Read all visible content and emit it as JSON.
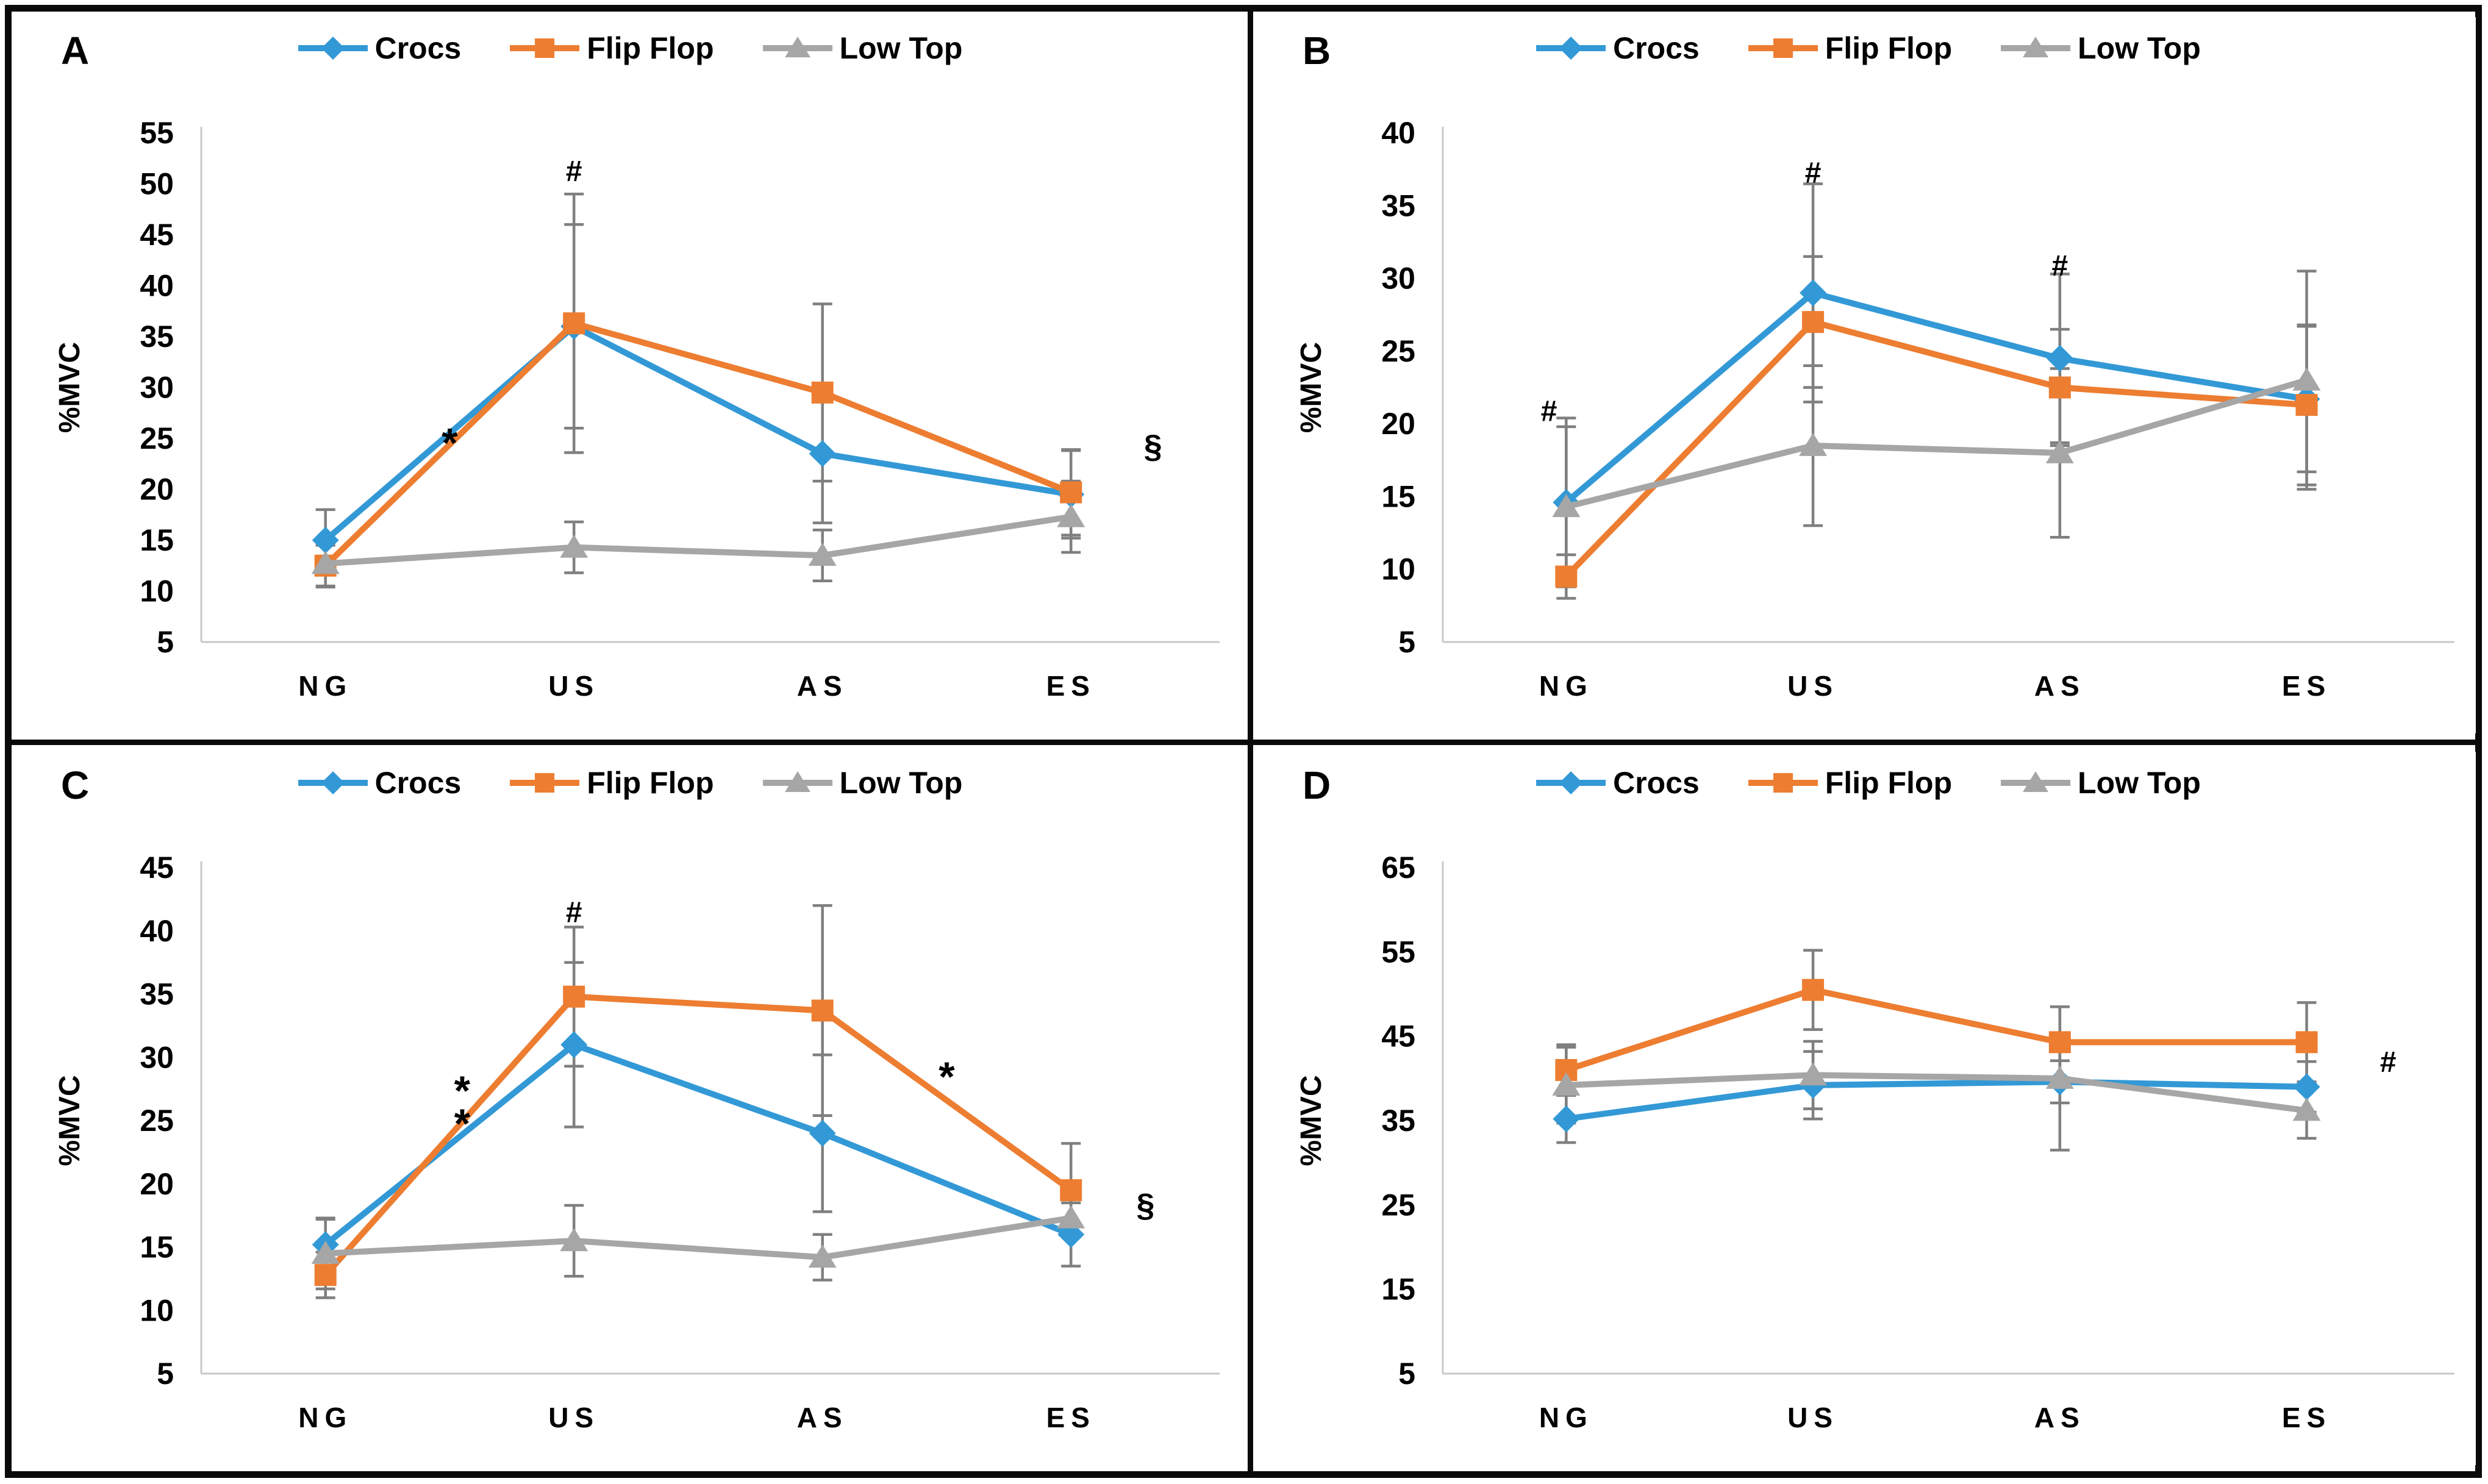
{
  "figure": {
    "background": "#ffffff",
    "frame_color": "#0a0a0a",
    "error_bar_color": "#7f7f7f",
    "axis_line_color": "#c8c8c8",
    "text_color": "#000000"
  },
  "chart_data": [
    {
      "type": "line",
      "title": "A",
      "ylabel": "%MVC",
      "ylim": [
        5,
        55
      ],
      "ystep": 5,
      "grid": false,
      "legend_position": "top",
      "categories": [
        "NG",
        "US",
        "AS",
        "ES"
      ],
      "series": [
        {
          "name": "Crocs",
          "marker": "diamond",
          "color": "#3399D6",
          "values": [
            15,
            36,
            23.5,
            19.5
          ],
          "errors": [
            3,
            10,
            6.8,
            4.3
          ]
        },
        {
          "name": "Flip Flop",
          "marker": "square",
          "color": "#ED7D31",
          "values": [
            12.5,
            36.3,
            29.5,
            19.7
          ],
          "errors": [
            2,
            12.7,
            8.7,
            4.2
          ]
        },
        {
          "name": "Low Top",
          "marker": "triangle",
          "color": "#A6A6A6",
          "values": [
            12.7,
            14.3,
            13.5,
            17.3
          ],
          "errors": [
            2.3,
            2.5,
            2.5,
            3.5
          ]
        }
      ],
      "annotations": [
        {
          "text": "*",
          "x": 1.5,
          "y": 25.2
        },
        {
          "text": "#",
          "x": 2,
          "y": 51.3
        },
        {
          "text": "§",
          "x": 4.33,
          "y": 24.3
        }
      ]
    },
    {
      "type": "line",
      "title": "B",
      "ylabel": "%MVC",
      "ylim": [
        5,
        40
      ],
      "ystep": 5,
      "grid": false,
      "legend_position": "top",
      "categories": [
        "NG",
        "US",
        "AS",
        "ES"
      ],
      "series": [
        {
          "name": "Crocs",
          "marker": "diamond",
          "color": "#3399D6",
          "values": [
            14.6,
            29,
            24.5,
            21.7
          ],
          "errors": [
            5.8,
            7.5,
            5.8,
            5
          ]
        },
        {
          "name": "Flip Flop",
          "marker": "square",
          "color": "#ED7D31",
          "values": [
            9.5,
            27,
            22.5,
            21.3
          ],
          "errors": [
            1.5,
            4.5,
            4,
            5.5
          ]
        },
        {
          "name": "Low Top",
          "marker": "triangle",
          "color": "#A6A6A6",
          "values": [
            14.3,
            18.5,
            18,
            23
          ],
          "errors": [
            5.5,
            5.5,
            5.8,
            7.5
          ]
        }
      ],
      "annotations": [
        {
          "text": "#",
          "x": 0.93,
          "y": 20.9
        },
        {
          "text": "#",
          "x": 2,
          "y": 37.3
        },
        {
          "text": "#",
          "x": 3,
          "y": 30.9
        }
      ]
    },
    {
      "type": "line",
      "title": "C",
      "ylabel": "%MVC",
      "ylim": [
        5,
        45
      ],
      "ystep": 5,
      "grid": false,
      "legend_position": "top",
      "categories": [
        "NG",
        "US",
        "AS",
        "ES"
      ],
      "series": [
        {
          "name": "Crocs",
          "marker": "diamond",
          "color": "#3399D6",
          "values": [
            15.2,
            31,
            24,
            16
          ],
          "errors": [
            2,
            6.5,
            6.2,
            2.5
          ]
        },
        {
          "name": "Flip Flop",
          "marker": "square",
          "color": "#ED7D31",
          "values": [
            12.8,
            34.8,
            33.7,
            19.5
          ],
          "errors": [
            1.8,
            5.5,
            8.3,
            3.7
          ]
        },
        {
          "name": "Low Top",
          "marker": "triangle",
          "color": "#A6A6A6",
          "values": [
            14.5,
            15.5,
            14.2,
            17.3
          ],
          "errors": [
            2.8,
            2.8,
            1.8,
            1.5
          ]
        }
      ],
      "annotations": [
        {
          "text": "*",
          "x": 1.55,
          "y": 27.9
        },
        {
          "text": "*",
          "x": 1.55,
          "y": 25.3
        },
        {
          "text": "#",
          "x": 2,
          "y": 41.5
        },
        {
          "text": "*",
          "x": 3.5,
          "y": 29
        },
        {
          "text": "§",
          "x": 4.3,
          "y": 18.4
        }
      ]
    },
    {
      "type": "line",
      "title": "D",
      "ylabel": "%MVC",
      "ylim": [
        5,
        65
      ],
      "ystep": 10,
      "grid": false,
      "legend_position": "top",
      "categories": [
        "NG",
        "US",
        "AS",
        "ES"
      ],
      "series": [
        {
          "name": "Crocs",
          "marker": "diamond",
          "color": "#3399D6",
          "values": [
            35.2,
            39.2,
            39.6,
            39
          ],
          "errors": [
            2.8,
            4,
            2.5,
            3
          ]
        },
        {
          "name": "Flip Flop",
          "marker": "square",
          "color": "#ED7D31",
          "values": [
            41,
            50.5,
            44.3,
            44.3
          ],
          "errors": [
            3,
            4.7,
            4.2,
            4.7
          ]
        },
        {
          "name": "Low Top",
          "marker": "triangle",
          "color": "#A6A6A6",
          "values": [
            39.2,
            40.4,
            40,
            36.2
          ],
          "errors": [
            4.5,
            4,
            8.5,
            3.3
          ]
        }
      ],
      "annotations": [
        {
          "text": "#",
          "x": 4.33,
          "y": 42
        }
      ]
    }
  ]
}
